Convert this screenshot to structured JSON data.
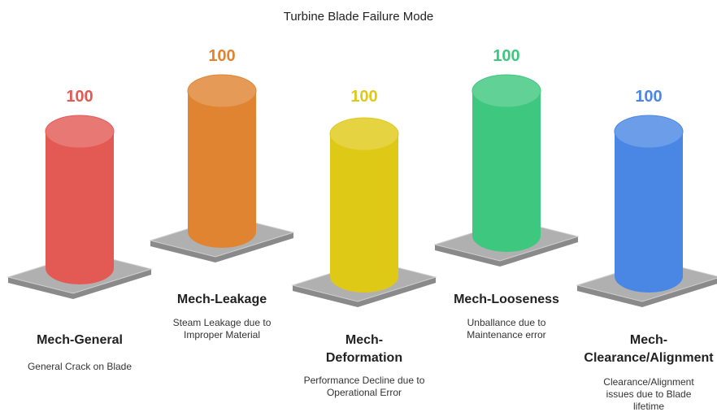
{
  "title": "Turbine Blade Failure Mode",
  "items": [
    {
      "value": "100",
      "title": "Mech-General",
      "description": "General Crack on Blade",
      "color": "#e35a55"
    },
    {
      "value": "100",
      "title": "Mech-Leakage",
      "description": "Steam Leakage due to Improper Material",
      "color": "#e08432"
    },
    {
      "value": "100",
      "title": "Mech-Deformation",
      "description": "Performance Decline due to Operational Error",
      "color": "#dfc917"
    },
    {
      "value": "100",
      "title": "Mech-Looseness",
      "description": "Unballance due to Maintenance error",
      "color": "#3ec77f"
    },
    {
      "value": "100",
      "title": "Mech-Clearance/Alignment",
      "description": "Clearance/Alignment issues due to Blade lifetime",
      "color": "#4a87e4"
    }
  ]
}
